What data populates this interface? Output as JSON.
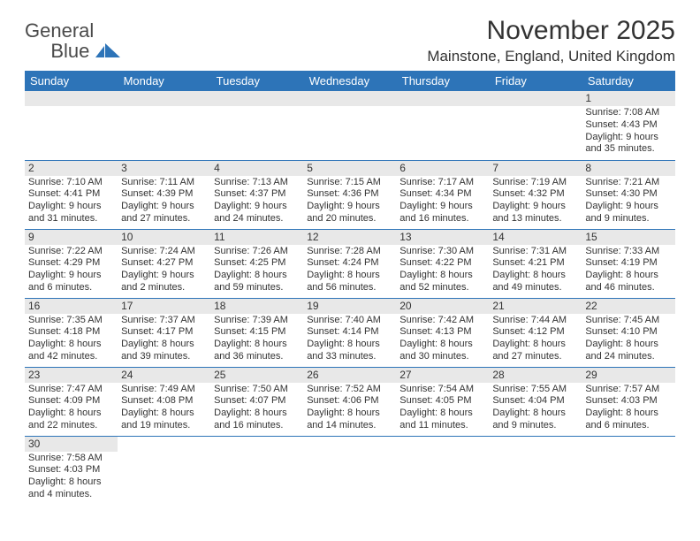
{
  "logo": {
    "general": "General",
    "blue": "Blue"
  },
  "title": "November 2025",
  "location": "Mainstone, England, United Kingdom",
  "colors": {
    "header_bg": "#2d74b8",
    "header_text": "#ffffff",
    "daynum_bg": "#e8e8e8",
    "border": "#2d74b8",
    "text": "#333333",
    "background": "#ffffff"
  },
  "weekdays": [
    "Sunday",
    "Monday",
    "Tuesday",
    "Wednesday",
    "Thursday",
    "Friday",
    "Saturday"
  ],
  "weeks": [
    [
      null,
      null,
      null,
      null,
      null,
      null,
      {
        "n": "1",
        "sr": "7:08 AM",
        "ss": "4:43 PM",
        "dl": "9 hours and 35 minutes."
      }
    ],
    [
      {
        "n": "2",
        "sr": "7:10 AM",
        "ss": "4:41 PM",
        "dl": "9 hours and 31 minutes."
      },
      {
        "n": "3",
        "sr": "7:11 AM",
        "ss": "4:39 PM",
        "dl": "9 hours and 27 minutes."
      },
      {
        "n": "4",
        "sr": "7:13 AM",
        "ss": "4:37 PM",
        "dl": "9 hours and 24 minutes."
      },
      {
        "n": "5",
        "sr": "7:15 AM",
        "ss": "4:36 PM",
        "dl": "9 hours and 20 minutes."
      },
      {
        "n": "6",
        "sr": "7:17 AM",
        "ss": "4:34 PM",
        "dl": "9 hours and 16 minutes."
      },
      {
        "n": "7",
        "sr": "7:19 AM",
        "ss": "4:32 PM",
        "dl": "9 hours and 13 minutes."
      },
      {
        "n": "8",
        "sr": "7:21 AM",
        "ss": "4:30 PM",
        "dl": "9 hours and 9 minutes."
      }
    ],
    [
      {
        "n": "9",
        "sr": "7:22 AM",
        "ss": "4:29 PM",
        "dl": "9 hours and 6 minutes."
      },
      {
        "n": "10",
        "sr": "7:24 AM",
        "ss": "4:27 PM",
        "dl": "9 hours and 2 minutes."
      },
      {
        "n": "11",
        "sr": "7:26 AM",
        "ss": "4:25 PM",
        "dl": "8 hours and 59 minutes."
      },
      {
        "n": "12",
        "sr": "7:28 AM",
        "ss": "4:24 PM",
        "dl": "8 hours and 56 minutes."
      },
      {
        "n": "13",
        "sr": "7:30 AM",
        "ss": "4:22 PM",
        "dl": "8 hours and 52 minutes."
      },
      {
        "n": "14",
        "sr": "7:31 AM",
        "ss": "4:21 PM",
        "dl": "8 hours and 49 minutes."
      },
      {
        "n": "15",
        "sr": "7:33 AM",
        "ss": "4:19 PM",
        "dl": "8 hours and 46 minutes."
      }
    ],
    [
      {
        "n": "16",
        "sr": "7:35 AM",
        "ss": "4:18 PM",
        "dl": "8 hours and 42 minutes."
      },
      {
        "n": "17",
        "sr": "7:37 AM",
        "ss": "4:17 PM",
        "dl": "8 hours and 39 minutes."
      },
      {
        "n": "18",
        "sr": "7:39 AM",
        "ss": "4:15 PM",
        "dl": "8 hours and 36 minutes."
      },
      {
        "n": "19",
        "sr": "7:40 AM",
        "ss": "4:14 PM",
        "dl": "8 hours and 33 minutes."
      },
      {
        "n": "20",
        "sr": "7:42 AM",
        "ss": "4:13 PM",
        "dl": "8 hours and 30 minutes."
      },
      {
        "n": "21",
        "sr": "7:44 AM",
        "ss": "4:12 PM",
        "dl": "8 hours and 27 minutes."
      },
      {
        "n": "22",
        "sr": "7:45 AM",
        "ss": "4:10 PM",
        "dl": "8 hours and 24 minutes."
      }
    ],
    [
      {
        "n": "23",
        "sr": "7:47 AM",
        "ss": "4:09 PM",
        "dl": "8 hours and 22 minutes."
      },
      {
        "n": "24",
        "sr": "7:49 AM",
        "ss": "4:08 PM",
        "dl": "8 hours and 19 minutes."
      },
      {
        "n": "25",
        "sr": "7:50 AM",
        "ss": "4:07 PM",
        "dl": "8 hours and 16 minutes."
      },
      {
        "n": "26",
        "sr": "7:52 AM",
        "ss": "4:06 PM",
        "dl": "8 hours and 14 minutes."
      },
      {
        "n": "27",
        "sr": "7:54 AM",
        "ss": "4:05 PM",
        "dl": "8 hours and 11 minutes."
      },
      {
        "n": "28",
        "sr": "7:55 AM",
        "ss": "4:04 PM",
        "dl": "8 hours and 9 minutes."
      },
      {
        "n": "29",
        "sr": "7:57 AM",
        "ss": "4:03 PM",
        "dl": "8 hours and 6 minutes."
      }
    ],
    [
      {
        "n": "30",
        "sr": "7:58 AM",
        "ss": "4:03 PM",
        "dl": "8 hours and 4 minutes."
      },
      null,
      null,
      null,
      null,
      null,
      null
    ]
  ],
  "labels": {
    "sunrise": "Sunrise: ",
    "sunset": "Sunset: ",
    "daylight": "Daylight: "
  }
}
